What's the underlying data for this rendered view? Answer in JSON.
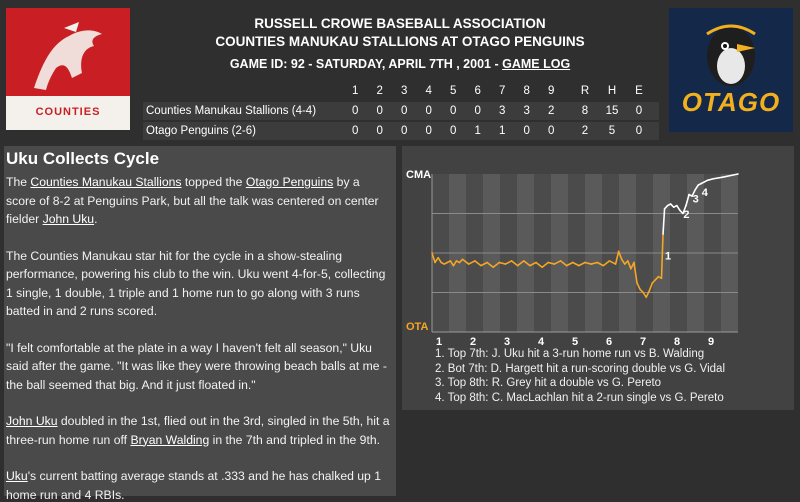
{
  "header": {
    "association": "RUSSELL CROWE BASEBALL ASSOCIATION",
    "matchup": "COUNTIES MANUKAU STALLIONS AT OTAGO PENGUINS",
    "game_info": "GAME ID: 92 - SATURDAY, APRIL 7TH , 2001 - ",
    "game_log_link": "GAME LOG"
  },
  "logos": {
    "left_brand": "COUNTIES",
    "right_brand": "OTAGO"
  },
  "linescore": {
    "columns": [
      "1",
      "2",
      "3",
      "4",
      "5",
      "6",
      "7",
      "8",
      "9",
      "R",
      "H",
      "E"
    ],
    "teams": [
      {
        "name": "Counties Manukau Stallions (4-4)",
        "values": [
          "0",
          "0",
          "0",
          "0",
          "0",
          "0",
          "3",
          "3",
          "2",
          "8",
          "15",
          "0"
        ]
      },
      {
        "name": "Otago Penguins (2-6)",
        "values": [
          "0",
          "0",
          "0",
          "0",
          "0",
          "1",
          "1",
          "0",
          "0",
          "2",
          "5",
          "0"
        ]
      }
    ]
  },
  "story": {
    "title": "Uku Collects Cycle",
    "p1_a": "The ",
    "p1_link1": "Counties Manukau Stallions",
    "p1_b": " topped the ",
    "p1_link2": "Otago Penguins",
    "p1_c": " by a score of 8-2 at Penguins Park, but all the talk was centered on center fielder ",
    "p1_link3": "John Uku",
    "p1_d": ".",
    "p2": "The Counties Manukau star hit for the cycle in a show-stealing performance, powering his club to the win. Uku went 4-for-5, collecting 1 single, 1 double, 1 triple and 1 home run to go along with 3 runs batted in and 2 runs scored.",
    "p3": "\"I felt comfortable at the plate in a way I haven't felt all season,\" Uku said after the game. \"It was like they were throwing beach balls at me - the ball seemed that big. And it just floated in.\"",
    "p4_link1": "John Uku",
    "p4_a": " doubled in the 1st, flied out in the 3rd, singled in the 5th, hit a three-run home run off ",
    "p4_link2": "Bryan Walding",
    "p4_b": " in the 7th and tripled in the 9th.",
    "p5_link": "Uku",
    "p5_a": "'s current batting average stands at .333 and he has chalked up 1 home run and 4 RBIs."
  },
  "chart_data": {
    "type": "line",
    "top_label": "CMA",
    "bottom_label": "OTA",
    "x_ticks": [
      "1",
      "2",
      "3",
      "4",
      "5",
      "6",
      "7",
      "8",
      "9"
    ],
    "ylim": [
      0,
      1
    ],
    "colors": {
      "top_team": "#ffffff",
      "bottom_team": "#f5a623"
    },
    "series": [
      {
        "values": [
          [
            0.0,
            0.5
          ],
          [
            0.01,
            0.44
          ],
          [
            0.02,
            0.47
          ],
          [
            0.03,
            0.44
          ],
          [
            0.04,
            0.43
          ],
          [
            0.05,
            0.44
          ],
          [
            0.06,
            0.45
          ],
          [
            0.07,
            0.42
          ],
          [
            0.08,
            0.45
          ],
          [
            0.09,
            0.44
          ],
          [
            0.1,
            0.46
          ],
          [
            0.12,
            0.43
          ],
          [
            0.14,
            0.45
          ],
          [
            0.16,
            0.42
          ],
          [
            0.18,
            0.44
          ],
          [
            0.2,
            0.41
          ],
          [
            0.22,
            0.44
          ],
          [
            0.24,
            0.43
          ],
          [
            0.26,
            0.45
          ],
          [
            0.28,
            0.42
          ],
          [
            0.3,
            0.45
          ],
          [
            0.32,
            0.42
          ],
          [
            0.34,
            0.44
          ],
          [
            0.36,
            0.41
          ],
          [
            0.38,
            0.44
          ],
          [
            0.4,
            0.43
          ],
          [
            0.42,
            0.45
          ],
          [
            0.44,
            0.42
          ],
          [
            0.46,
            0.44
          ],
          [
            0.48,
            0.42
          ],
          [
            0.5,
            0.44
          ],
          [
            0.52,
            0.43
          ],
          [
            0.54,
            0.44
          ],
          [
            0.56,
            0.42
          ],
          [
            0.58,
            0.45
          ],
          [
            0.6,
            0.43
          ],
          [
            0.61,
            0.51
          ],
          [
            0.62,
            0.46
          ],
          [
            0.63,
            0.43
          ],
          [
            0.64,
            0.45
          ],
          [
            0.65,
            0.4
          ],
          [
            0.66,
            0.44
          ],
          [
            0.67,
            0.31
          ],
          [
            0.68,
            0.27
          ],
          [
            0.69,
            0.25
          ],
          [
            0.7,
            0.22
          ],
          [
            0.71,
            0.26
          ],
          [
            0.72,
            0.31
          ],
          [
            0.73,
            0.33
          ],
          [
            0.74,
            0.35
          ],
          [
            0.75,
            0.34
          ],
          [
            0.755,
            0.62
          ],
          [
            0.76,
            0.78
          ],
          [
            0.77,
            0.8
          ],
          [
            0.78,
            0.81
          ],
          [
            0.79,
            0.79
          ],
          [
            0.8,
            0.8
          ],
          [
            0.81,
            0.77
          ],
          [
            0.82,
            0.75
          ],
          [
            0.83,
            0.8
          ],
          [
            0.84,
            0.87
          ],
          [
            0.85,
            0.86
          ],
          [
            0.86,
            0.9
          ],
          [
            0.87,
            0.93
          ],
          [
            0.88,
            0.94
          ],
          [
            0.89,
            0.95
          ],
          [
            0.9,
            0.96
          ],
          [
            0.92,
            0.97
          ],
          [
            0.95,
            0.98
          ],
          [
            1.0,
            1.0
          ]
        ]
      }
    ],
    "markers": [
      {
        "label": "1",
        "x": 0.755,
        "y": 0.46
      },
      {
        "label": "2",
        "x": 0.815,
        "y": 0.72
      },
      {
        "label": "3",
        "x": 0.845,
        "y": 0.82
      },
      {
        "label": "4",
        "x": 0.875,
        "y": 0.86
      }
    ]
  },
  "notes": [
    "1. Top 7th: J. Uku hit a 3-run home run vs B. Walding",
    "2. Bot 7th: D. Hargett hit a run-scoring double vs G. Vidal",
    "3. Top 8th: R. Grey hit a double vs G. Pereto",
    "4. Top 8th: C. MacLachlan hit a 2-run single vs G. Pereto"
  ]
}
